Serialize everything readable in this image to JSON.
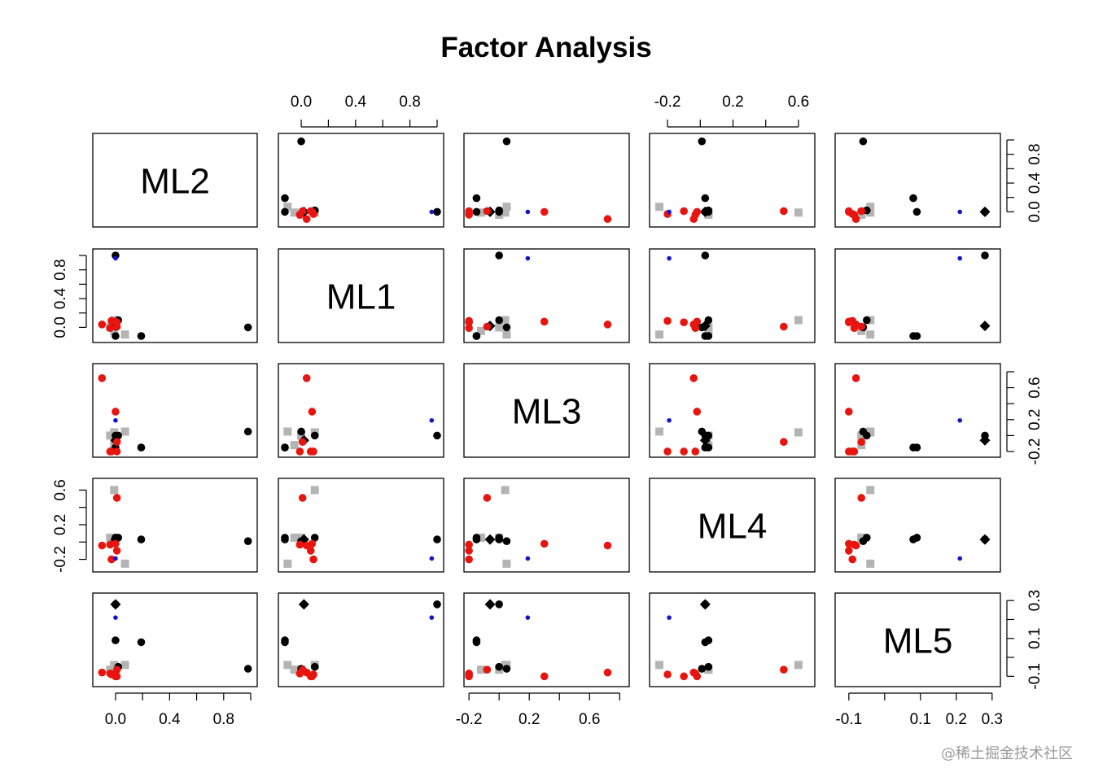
{
  "chart_data": {
    "type": "scatter",
    "title": "Factor Analysis",
    "variables": [
      "ML2",
      "ML1",
      "ML3",
      "ML4",
      "ML5"
    ],
    "ranges": {
      "ML2": [
        -0.12,
        1.0
      ],
      "ML1": [
        -0.12,
        1.0
      ],
      "ML3": [
        -0.19,
        0.82
      ],
      "ML4": [
        -0.27,
        0.66
      ],
      "ML5": [
        -0.12,
        0.305
      ]
    },
    "ticks": {
      "ML2": [
        "0.0",
        "0.4",
        "0.8"
      ],
      "ML1": [
        "0.0",
        "0.4",
        "0.8"
      ],
      "ML3": [
        "-0.2",
        "0.2",
        "0.6"
      ],
      "ML4": [
        "-0.2",
        "0.2",
        "0.6"
      ],
      "ML5": [
        "-0.1",
        "0.1",
        "0.3"
      ]
    },
    "extra_tick_labels": {
      "ML5_bottom": [
        "0.1",
        "0.2",
        "0.3"
      ]
    },
    "points": [
      {
        "group": "black circle",
        "color": "#000000",
        "shape": "circle",
        "ML2": 0.0,
        "ML1": 1.0,
        "ML3": 0.0,
        "ML4": 0.03,
        "ML5": 0.28
      },
      {
        "group": "black circle",
        "color": "#000000",
        "shape": "circle",
        "ML2": 0.98,
        "ML1": 0.0,
        "ML3": 0.05,
        "ML4": 0.01,
        "ML5": -0.06
      },
      {
        "group": "black circle",
        "color": "#000000",
        "shape": "circle",
        "ML2": 0.19,
        "ML1": -0.12,
        "ML3": -0.15,
        "ML4": 0.03,
        "ML5": 0.08
      },
      {
        "group": "black circle",
        "color": "#000000",
        "shape": "circle",
        "ML2": 0.02,
        "ML1": 0.1,
        "ML3": 0.0,
        "ML4": 0.05,
        "ML5": -0.05
      },
      {
        "group": "black circle",
        "color": "#000000",
        "shape": "circle",
        "ML2": 0.0,
        "ML1": -0.12,
        "ML3": -0.15,
        "ML4": 0.05,
        "ML5": 0.09
      },
      {
        "group": "black diamond",
        "color": "#000000",
        "shape": "diamond",
        "ML2": 0.0,
        "ML1": 0.02,
        "ML3": -0.06,
        "ML4": 0.03,
        "ML5": 0.28
      },
      {
        "group": "red",
        "color": "#e8140f",
        "shape": "circle",
        "ML2": -0.1,
        "ML1": 0.04,
        "ML3": 0.72,
        "ML4": -0.04,
        "ML5": -0.08
      },
      {
        "group": "red",
        "color": "#e8140f",
        "shape": "circle",
        "ML2": 0.0,
        "ML1": 0.08,
        "ML3": 0.3,
        "ML4": -0.02,
        "ML5": -0.1
      },
      {
        "group": "red",
        "color": "#e8140f",
        "shape": "circle",
        "ML2": -0.04,
        "ML1": -0.01,
        "ML3": -0.2,
        "ML4": -0.03,
        "ML5": -0.085
      },
      {
        "group": "red",
        "color": "#e8140f",
        "shape": "circle",
        "ML2": -0.03,
        "ML1": 0.09,
        "ML3": -0.2,
        "ML4": -0.2,
        "ML5": -0.09
      },
      {
        "group": "red",
        "color": "#e8140f",
        "shape": "circle",
        "ML2": 0.01,
        "ML1": 0.01,
        "ML3": -0.08,
        "ML4": 0.51,
        "ML5": -0.065
      },
      {
        "group": "red",
        "color": "#e8140f",
        "shape": "circle",
        "ML2": 0.01,
        "ML1": 0.07,
        "ML3": -0.2,
        "ML4": -0.1,
        "ML5": -0.1
      },
      {
        "group": "gray",
        "color": "#b4b4b4",
        "shape": "square",
        "ML2": -0.01,
        "ML1": 0.1,
        "ML3": 0.04,
        "ML4": 0.6,
        "ML5": -0.04
      },
      {
        "group": "gray",
        "color": "#b4b4b4",
        "shape": "square",
        "ML2": -0.01,
        "ML1": -0.05,
        "ML3": -0.12,
        "ML4": 0.05,
        "ML5": -0.065
      },
      {
        "group": "gray",
        "color": "#b4b4b4",
        "shape": "square",
        "ML2": 0.07,
        "ML1": -0.1,
        "ML3": 0.05,
        "ML4": -0.25,
        "ML5": -0.04
      },
      {
        "group": "gray",
        "color": "#b4b4b4",
        "shape": "square",
        "ML2": -0.04,
        "ML1": 0.0,
        "ML3": 0.0,
        "ML4": 0.05,
        "ML5": -0.065
      },
      {
        "group": "blue",
        "color": "#1414d2",
        "shape": "dot",
        "ML2": 0.0,
        "ML1": 0.96,
        "ML3": 0.19,
        "ML4": -0.19,
        "ML5": 0.21
      }
    ]
  },
  "watermark": "@稀土掘金技术社区"
}
